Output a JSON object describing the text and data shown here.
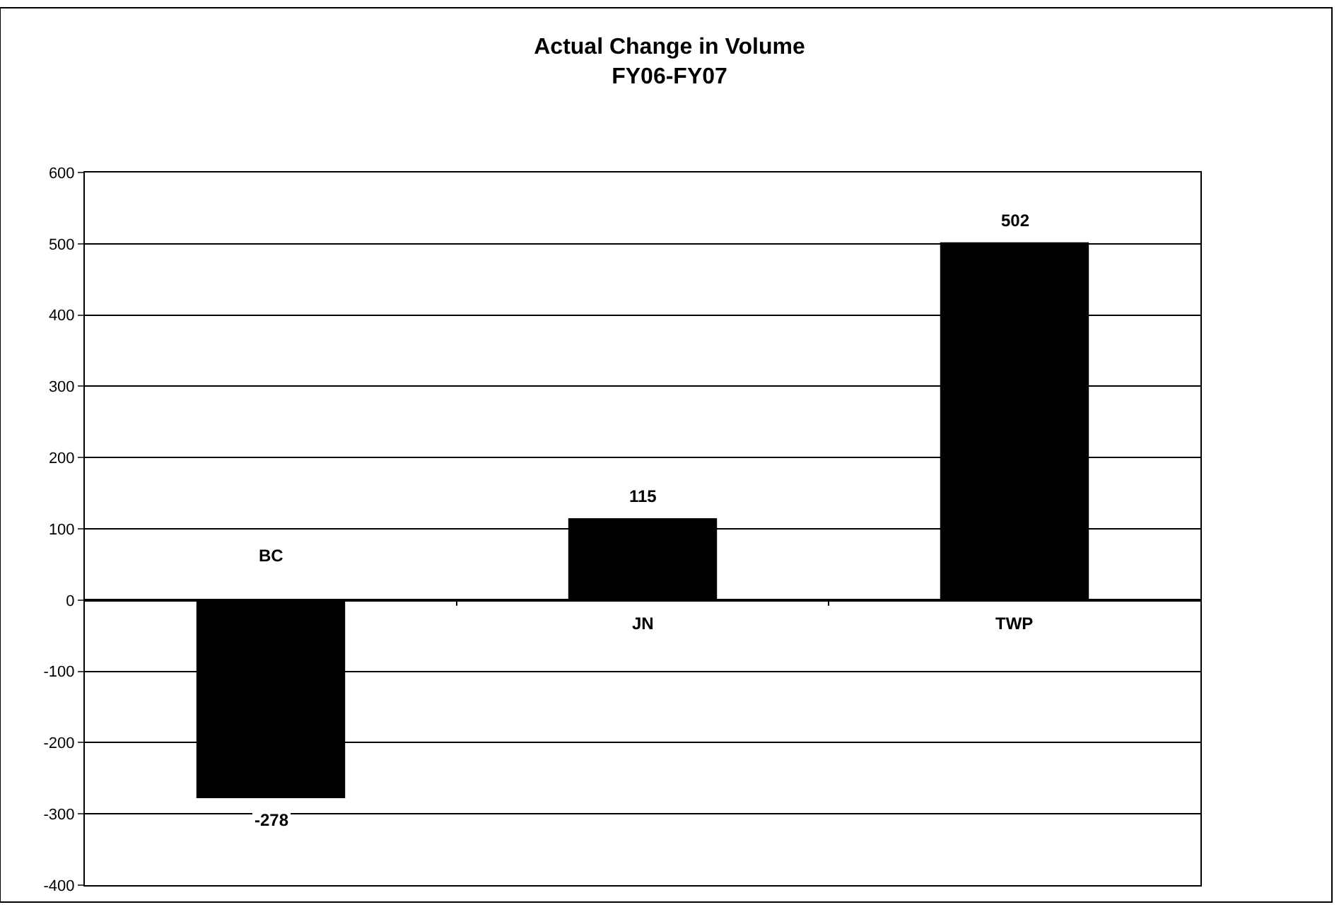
{
  "chart_data": {
    "type": "bar",
    "title": "Actual Change in Volume\nFY06-FY07",
    "categories": [
      "BC",
      "JN",
      "TWP"
    ],
    "values": [
      -278,
      115,
      502
    ],
    "color": "#000000",
    "ylim": [
      -400,
      600
    ],
    "yticks": [
      -400,
      -300,
      -200,
      -100,
      0,
      100,
      200,
      300,
      400,
      500,
      600
    ],
    "grid": "y",
    "legend": false,
    "data_labels": true
  }
}
